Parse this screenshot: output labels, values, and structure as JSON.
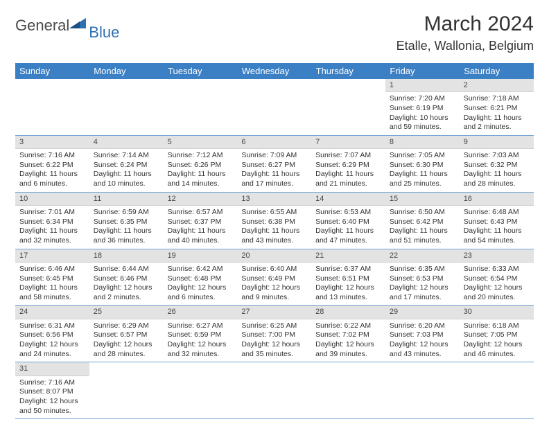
{
  "logo": {
    "general": "General",
    "blue": "Blue"
  },
  "title": "March 2024",
  "location": "Etalle, Wallonia, Belgium",
  "colors": {
    "header_bg": "#3b7fc4",
    "header_fg": "#ffffff",
    "daynum_bg": "#e3e3e3",
    "row_border": "#6fa3d6",
    "logo_gray": "#4a4a4a",
    "logo_blue": "#2e6fb0",
    "text": "#333333"
  },
  "weekdays": [
    "Sunday",
    "Monday",
    "Tuesday",
    "Wednesday",
    "Thursday",
    "Friday",
    "Saturday"
  ],
  "weeks": [
    [
      null,
      null,
      null,
      null,
      null,
      {
        "n": "1",
        "sr": "Sunrise: 7:20 AM",
        "ss": "Sunset: 6:19 PM",
        "d1": "Daylight: 10 hours",
        "d2": "and 59 minutes."
      },
      {
        "n": "2",
        "sr": "Sunrise: 7:18 AM",
        "ss": "Sunset: 6:21 PM",
        "d1": "Daylight: 11 hours",
        "d2": "and 2 minutes."
      }
    ],
    [
      {
        "n": "3",
        "sr": "Sunrise: 7:16 AM",
        "ss": "Sunset: 6:22 PM",
        "d1": "Daylight: 11 hours",
        "d2": "and 6 minutes."
      },
      {
        "n": "4",
        "sr": "Sunrise: 7:14 AM",
        "ss": "Sunset: 6:24 PM",
        "d1": "Daylight: 11 hours",
        "d2": "and 10 minutes."
      },
      {
        "n": "5",
        "sr": "Sunrise: 7:12 AM",
        "ss": "Sunset: 6:26 PM",
        "d1": "Daylight: 11 hours",
        "d2": "and 14 minutes."
      },
      {
        "n": "6",
        "sr": "Sunrise: 7:09 AM",
        "ss": "Sunset: 6:27 PM",
        "d1": "Daylight: 11 hours",
        "d2": "and 17 minutes."
      },
      {
        "n": "7",
        "sr": "Sunrise: 7:07 AM",
        "ss": "Sunset: 6:29 PM",
        "d1": "Daylight: 11 hours",
        "d2": "and 21 minutes."
      },
      {
        "n": "8",
        "sr": "Sunrise: 7:05 AM",
        "ss": "Sunset: 6:30 PM",
        "d1": "Daylight: 11 hours",
        "d2": "and 25 minutes."
      },
      {
        "n": "9",
        "sr": "Sunrise: 7:03 AM",
        "ss": "Sunset: 6:32 PM",
        "d1": "Daylight: 11 hours",
        "d2": "and 28 minutes."
      }
    ],
    [
      {
        "n": "10",
        "sr": "Sunrise: 7:01 AM",
        "ss": "Sunset: 6:34 PM",
        "d1": "Daylight: 11 hours",
        "d2": "and 32 minutes."
      },
      {
        "n": "11",
        "sr": "Sunrise: 6:59 AM",
        "ss": "Sunset: 6:35 PM",
        "d1": "Daylight: 11 hours",
        "d2": "and 36 minutes."
      },
      {
        "n": "12",
        "sr": "Sunrise: 6:57 AM",
        "ss": "Sunset: 6:37 PM",
        "d1": "Daylight: 11 hours",
        "d2": "and 40 minutes."
      },
      {
        "n": "13",
        "sr": "Sunrise: 6:55 AM",
        "ss": "Sunset: 6:38 PM",
        "d1": "Daylight: 11 hours",
        "d2": "and 43 minutes."
      },
      {
        "n": "14",
        "sr": "Sunrise: 6:53 AM",
        "ss": "Sunset: 6:40 PM",
        "d1": "Daylight: 11 hours",
        "d2": "and 47 minutes."
      },
      {
        "n": "15",
        "sr": "Sunrise: 6:50 AM",
        "ss": "Sunset: 6:42 PM",
        "d1": "Daylight: 11 hours",
        "d2": "and 51 minutes."
      },
      {
        "n": "16",
        "sr": "Sunrise: 6:48 AM",
        "ss": "Sunset: 6:43 PM",
        "d1": "Daylight: 11 hours",
        "d2": "and 54 minutes."
      }
    ],
    [
      {
        "n": "17",
        "sr": "Sunrise: 6:46 AM",
        "ss": "Sunset: 6:45 PM",
        "d1": "Daylight: 11 hours",
        "d2": "and 58 minutes."
      },
      {
        "n": "18",
        "sr": "Sunrise: 6:44 AM",
        "ss": "Sunset: 6:46 PM",
        "d1": "Daylight: 12 hours",
        "d2": "and 2 minutes."
      },
      {
        "n": "19",
        "sr": "Sunrise: 6:42 AM",
        "ss": "Sunset: 6:48 PM",
        "d1": "Daylight: 12 hours",
        "d2": "and 6 minutes."
      },
      {
        "n": "20",
        "sr": "Sunrise: 6:40 AM",
        "ss": "Sunset: 6:49 PM",
        "d1": "Daylight: 12 hours",
        "d2": "and 9 minutes."
      },
      {
        "n": "21",
        "sr": "Sunrise: 6:37 AM",
        "ss": "Sunset: 6:51 PM",
        "d1": "Daylight: 12 hours",
        "d2": "and 13 minutes."
      },
      {
        "n": "22",
        "sr": "Sunrise: 6:35 AM",
        "ss": "Sunset: 6:53 PM",
        "d1": "Daylight: 12 hours",
        "d2": "and 17 minutes."
      },
      {
        "n": "23",
        "sr": "Sunrise: 6:33 AM",
        "ss": "Sunset: 6:54 PM",
        "d1": "Daylight: 12 hours",
        "d2": "and 20 minutes."
      }
    ],
    [
      {
        "n": "24",
        "sr": "Sunrise: 6:31 AM",
        "ss": "Sunset: 6:56 PM",
        "d1": "Daylight: 12 hours",
        "d2": "and 24 minutes."
      },
      {
        "n": "25",
        "sr": "Sunrise: 6:29 AM",
        "ss": "Sunset: 6:57 PM",
        "d1": "Daylight: 12 hours",
        "d2": "and 28 minutes."
      },
      {
        "n": "26",
        "sr": "Sunrise: 6:27 AM",
        "ss": "Sunset: 6:59 PM",
        "d1": "Daylight: 12 hours",
        "d2": "and 32 minutes."
      },
      {
        "n": "27",
        "sr": "Sunrise: 6:25 AM",
        "ss": "Sunset: 7:00 PM",
        "d1": "Daylight: 12 hours",
        "d2": "and 35 minutes."
      },
      {
        "n": "28",
        "sr": "Sunrise: 6:22 AM",
        "ss": "Sunset: 7:02 PM",
        "d1": "Daylight: 12 hours",
        "d2": "and 39 minutes."
      },
      {
        "n": "29",
        "sr": "Sunrise: 6:20 AM",
        "ss": "Sunset: 7:03 PM",
        "d1": "Daylight: 12 hours",
        "d2": "and 43 minutes."
      },
      {
        "n": "30",
        "sr": "Sunrise: 6:18 AM",
        "ss": "Sunset: 7:05 PM",
        "d1": "Daylight: 12 hours",
        "d2": "and 46 minutes."
      }
    ],
    [
      {
        "n": "31",
        "sr": "Sunrise: 7:16 AM",
        "ss": "Sunset: 8:07 PM",
        "d1": "Daylight: 12 hours",
        "d2": "and 50 minutes."
      },
      null,
      null,
      null,
      null,
      null,
      null
    ]
  ]
}
